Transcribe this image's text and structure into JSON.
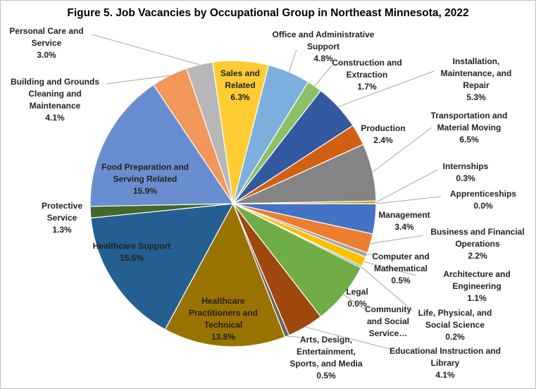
{
  "chart_data": {
    "type": "pie",
    "title": "Figure 5. Job Vacancies by Occupational Group in Northeast Minnesota, 2022",
    "categories": [
      "Management",
      "Business and Financial Operations",
      "Computer and Mathematical",
      "Architecture and Engineering",
      "Life, Physical, and Social Science",
      "Community and Social Service…",
      "Legal",
      "Educational Instruction and Library",
      "Arts, Design, Entertainment, Sports, and Media",
      "Healthcare Practitioners and Technical",
      "Healthcare Support",
      "Protective Service",
      "Food Preparation and Serving Related",
      "Building and Grounds Cleaning and Maintenance",
      "Personal Care and Service",
      "Sales and Related",
      "Office and Administrative Support",
      "Construction and Extraction",
      "Installation, Maintenance, and Repair",
      "Production",
      "Transportation and Material Moving",
      "Internships",
      "Apprenticeships"
    ],
    "values": [
      3.4,
      2.2,
      0.5,
      1.1,
      0.2,
      7.1,
      0.0,
      4.1,
      0.5,
      13.8,
      15.5,
      1.3,
      15.9,
      4.1,
      3.0,
      6.3,
      4.8,
      1.7,
      5.3,
      2.4,
      6.5,
      0.3,
      0.0
    ],
    "value_labels": [
      "3.4%",
      "2.2%",
      "0.5%",
      "1.1%",
      "0.2%",
      null,
      "0.0%",
      "4.1%",
      "0.5%",
      "13.8%",
      "15.5%",
      "1.3%",
      "15.9%",
      "4.1%",
      "3.0%",
      "6.3%",
      "4.8%",
      "1.7%",
      "5.3%",
      "2.4%",
      "6.5%",
      "0.3%",
      "0.0%"
    ],
    "colors": [
      "#4472C4",
      "#ED7D31",
      "#A5A5A5",
      "#FFC000",
      "#5B9BD5",
      "#70AD47",
      "#264478",
      "#9E480E",
      "#636363",
      "#997300",
      "#255E91",
      "#43682B",
      "#698ED0",
      "#F1975A",
      "#B7B7B7",
      "#FFCD33",
      "#7CAFDD",
      "#8CC168",
      "#335AA1",
      "#D26012",
      "#848484",
      "#CC9A00",
      "#4E7BB6"
    ]
  }
}
